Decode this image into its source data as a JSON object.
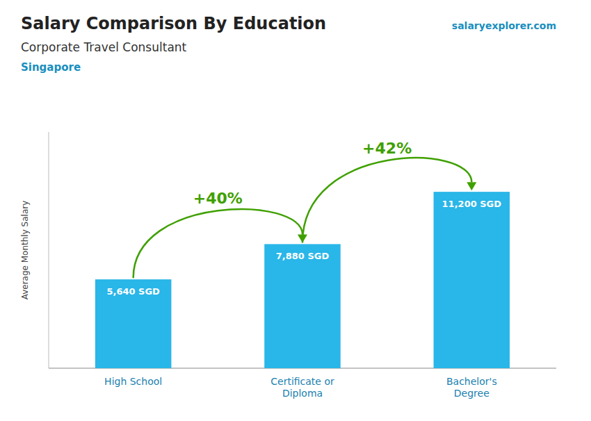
{
  "chart_data": {
    "type": "bar",
    "title": "Salary Comparison By Education",
    "subtitle": "Corporate Travel Consultant",
    "country": "Singapore",
    "source": "salaryexplorer.com",
    "ylabel": "Average Monthly Salary",
    "categories": [
      "High School",
      "Certificate or\nDiploma",
      "Bachelor's\nDegree"
    ],
    "values": [
      5640,
      7880,
      11200
    ],
    "value_labels": [
      "5,640 SGD",
      "7,880 SGD",
      "11,200 SGD"
    ],
    "data_labels": true,
    "annotations": [
      "+40%",
      "+42%"
    ],
    "color": "#29b6e8",
    "ylim": [
      0,
      15000
    ],
    "tick_labels": "x",
    "grid": false
  }
}
